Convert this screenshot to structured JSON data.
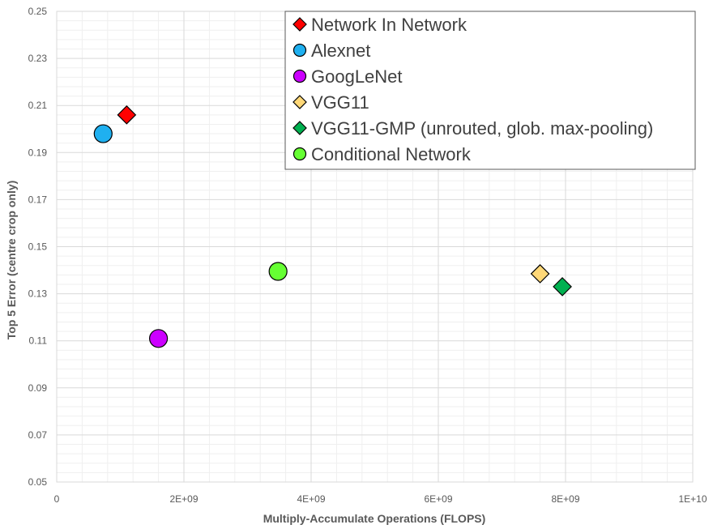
{
  "chart_data": {
    "type": "scatter",
    "title": "",
    "xlabel": "Multiply-Accumulate Operations (FLOPS)",
    "ylabel": "Top 5 Error (centre crop only)",
    "xlim": [
      0,
      10000000000
    ],
    "ylim": [
      0.05,
      0.25
    ],
    "x_ticks": [
      0,
      2000000000,
      4000000000,
      6000000000,
      8000000000,
      10000000000
    ],
    "x_tick_labels": [
      "0",
      "2E+09",
      "4E+09",
      "6E+09",
      "8E+09",
      "1E+10"
    ],
    "y_ticks": [
      0.05,
      0.07,
      0.09,
      0.11,
      0.13,
      0.15,
      0.17,
      0.19,
      0.21,
      0.23,
      0.25
    ],
    "y_tick_labels": [
      "0.05",
      "0.07",
      "0.09",
      "0.11",
      "0.13",
      "0.15",
      "0.17",
      "0.19",
      "0.21",
      "0.23",
      "0.25"
    ],
    "grid": true,
    "minor_grid": true,
    "legend_position": "top-right",
    "series": [
      {
        "name": "Network In Network",
        "marker": "diamond",
        "color": "#ff0000",
        "points": [
          {
            "x": 1100000000,
            "y": 0.206
          }
        ]
      },
      {
        "name": "Alexnet",
        "marker": "circle",
        "color": "#1fb0f0",
        "points": [
          {
            "x": 730000000,
            "y": 0.198
          }
        ]
      },
      {
        "name": "GoogLeNet",
        "marker": "circle",
        "color": "#cc00ff",
        "points": [
          {
            "x": 1600000000,
            "y": 0.111
          }
        ]
      },
      {
        "name": "VGG11",
        "marker": "diamond",
        "color": "#ffd878",
        "points": [
          {
            "x": 7600000000,
            "y": 0.1385
          }
        ]
      },
      {
        "name": "VGG11-GMP (unrouted, glob. max-pooling)",
        "marker": "diamond",
        "color": "#00b050",
        "points": [
          {
            "x": 7950000000,
            "y": 0.133
          }
        ]
      },
      {
        "name": "Conditional Network",
        "marker": "circle",
        "color": "#66ff33",
        "points": [
          {
            "x": 3480000000,
            "y": 0.1395
          }
        ]
      }
    ]
  }
}
